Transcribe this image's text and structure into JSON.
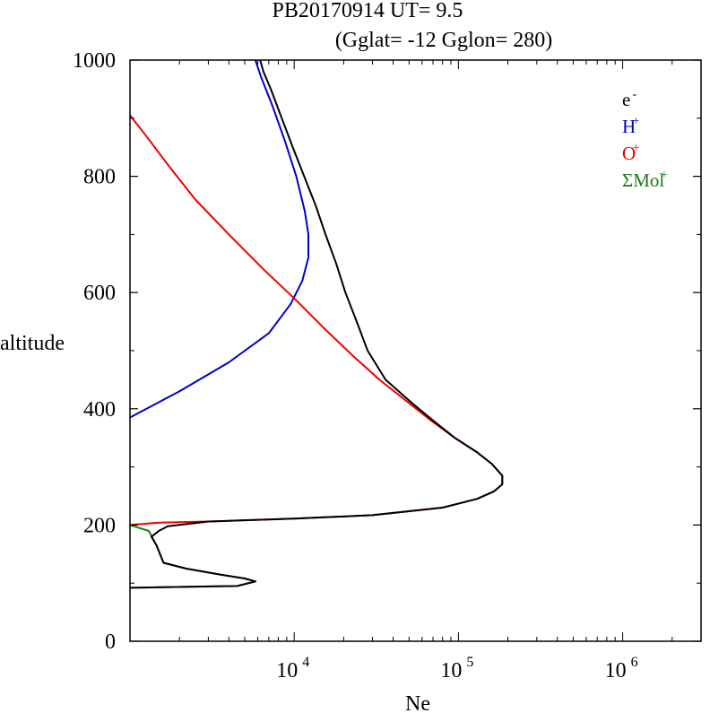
{
  "title_line1": "PB20170914   UT=  9.5",
  "title_line2": "(Gglat= -12   Gglon=  280)",
  "chart_data": {
    "type": "line",
    "xlabel": "Ne",
    "ylabel": "altitude",
    "xscale": "log",
    "xlim": [
      1000,
      3000000
    ],
    "ylim": [
      0,
      1000
    ],
    "yticks": [
      "0",
      "200",
      "400",
      "600",
      "800",
      "1000"
    ],
    "xticks": [
      {
        "base": "10",
        "exp": "4",
        "value": 10000
      },
      {
        "base": "10",
        "exp": "5",
        "value": 100000
      },
      {
        "base": "10",
        "exp": "6",
        "value": 1000000
      }
    ],
    "legend": [
      {
        "base": "e",
        "sup": "-",
        "color": "#000000"
      },
      {
        "base": "H",
        "sup": "+",
        "color": "#0000cc"
      },
      {
        "base": "O",
        "sup": "+",
        "color": "#ee0000"
      },
      {
        "base": "ΣMol",
        "sup": "+",
        "color": "#1a7a1a"
      }
    ],
    "legend_position": "top-right",
    "grid": false,
    "series": [
      {
        "id": "H",
        "color": "#0000cc",
        "points": [
          [
            1000,
            385
          ],
          [
            2000,
            430
          ],
          [
            4000,
            480
          ],
          [
            7000,
            530
          ],
          [
            9500,
            580
          ],
          [
            11200,
            620
          ],
          [
            12200,
            660
          ],
          [
            12200,
            700
          ],
          [
            11600,
            740
          ],
          [
            10300,
            800
          ],
          [
            8800,
            860
          ],
          [
            7400,
            920
          ],
          [
            6300,
            970
          ],
          [
            5800,
            1000
          ]
        ]
      },
      {
        "id": "O",
        "color": "#ee0000",
        "points": [
          [
            1000,
            200
          ],
          [
            1500,
            204
          ],
          [
            3000,
            206
          ],
          [
            10000,
            211
          ],
          [
            30000,
            217
          ],
          [
            80000,
            230
          ],
          [
            130000,
            245
          ],
          [
            165000,
            258
          ],
          [
            185000,
            270
          ],
          [
            185000,
            285
          ],
          [
            160000,
            305
          ],
          [
            130000,
            325
          ],
          [
            95000,
            350
          ],
          [
            68000,
            380
          ],
          [
            50000,
            410
          ],
          [
            33000,
            450
          ],
          [
            23000,
            490
          ],
          [
            15000,
            540
          ],
          [
            10000,
            590
          ],
          [
            6500,
            640
          ],
          [
            4000,
            700
          ],
          [
            2500,
            760
          ],
          [
            1700,
            820
          ],
          [
            1250,
            870
          ],
          [
            1000,
            905
          ]
        ]
      },
      {
        "id": "Mol",
        "color": "#1a7a1a",
        "points": [
          [
            1000,
            200
          ],
          [
            1300,
            190
          ],
          [
            1450,
            165
          ],
          [
            1600,
            135
          ],
          [
            2200,
            125
          ],
          [
            3500,
            115
          ],
          [
            5000,
            108
          ],
          [
            5800,
            103
          ],
          [
            4500,
            95
          ],
          [
            1000,
            92
          ]
        ]
      },
      {
        "id": "e",
        "color": "#000000",
        "points": [
          [
            1000,
            92
          ],
          [
            4500,
            95
          ],
          [
            5800,
            103
          ],
          [
            5000,
            108
          ],
          [
            3500,
            115
          ],
          [
            2200,
            125
          ],
          [
            1600,
            135
          ],
          [
            1450,
            165
          ],
          [
            1350,
            180
          ],
          [
            1500,
            190
          ],
          [
            1700,
            198
          ],
          [
            3000,
            206
          ],
          [
            10000,
            211
          ],
          [
            30000,
            217
          ],
          [
            80000,
            230
          ],
          [
            130000,
            245
          ],
          [
            165000,
            258
          ],
          [
            185000,
            270
          ],
          [
            185000,
            285
          ],
          [
            160000,
            305
          ],
          [
            130000,
            325
          ],
          [
            95000,
            350
          ],
          [
            70000,
            380
          ],
          [
            52000,
            410
          ],
          [
            36000,
            450
          ],
          [
            28000,
            500
          ],
          [
            24000,
            550
          ],
          [
            20500,
            600
          ],
          [
            18000,
            650
          ],
          [
            15500,
            700
          ],
          [
            13500,
            750
          ],
          [
            11500,
            800
          ],
          [
            9800,
            850
          ],
          [
            8400,
            900
          ],
          [
            7200,
            950
          ],
          [
            6500,
            980
          ],
          [
            6200,
            1000
          ]
        ]
      }
    ]
  }
}
